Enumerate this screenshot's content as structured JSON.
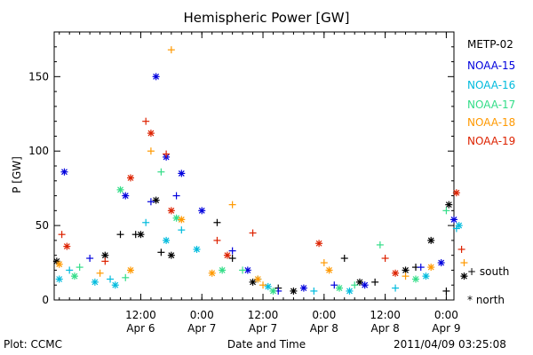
{
  "chart_data": {
    "type": "scatter",
    "title": "Hemispheric Power [GW]",
    "ylabel": "P [GW]",
    "xlabel": "Date and Time",
    "ylim": [
      0,
      180
    ],
    "xlim": [
      "2011-04-05T19:00",
      "2011-04-09T01:30"
    ],
    "yticks": [
      0,
      50,
      100,
      150
    ],
    "xticks": [
      {
        "top": "12:00",
        "bottom": "Apr 6"
      },
      {
        "top": "0:00",
        "bottom": "Apr 7"
      },
      {
        "top": "12:00",
        "bottom": "Apr 7"
      },
      {
        "top": "0:00",
        "bottom": "Apr 8"
      },
      {
        "top": "12:00",
        "bottom": "Apr 8"
      },
      {
        "top": "0:00",
        "bottom": "Apr 9"
      }
    ],
    "markers": [
      {
        "symbol": "+",
        "label": "south"
      },
      {
        "symbol": "*",
        "label": "north"
      }
    ],
    "series": [
      {
        "name": "METP-02",
        "color": "#000000",
        "south": [
          [
            "2011-04-06T08:00",
            44
          ],
          [
            "2011-04-06T11:00",
            44
          ],
          [
            "2011-04-06T16:00",
            32
          ],
          [
            "2011-04-07T03:00",
            52
          ],
          [
            "2011-04-07T06:00",
            28
          ],
          [
            "2011-04-07T15:00",
            8
          ],
          [
            "2011-04-08T04:00",
            28
          ],
          [
            "2011-04-08T10:00",
            12
          ],
          [
            "2011-04-08T18:00",
            22
          ],
          [
            "2011-04-09T00:00",
            6
          ]
        ],
        "north": [
          [
            "2011-04-05T19:30",
            26
          ],
          [
            "2011-04-06T05:00",
            30
          ],
          [
            "2011-04-06T12:00",
            44
          ],
          [
            "2011-04-06T15:00",
            67
          ],
          [
            "2011-04-06T18:00",
            30
          ],
          [
            "2011-04-07T10:00",
            12
          ],
          [
            "2011-04-07T18:00",
            6
          ],
          [
            "2011-04-08T07:00",
            12
          ],
          [
            "2011-04-08T16:00",
            20
          ],
          [
            "2011-04-08T21:00",
            40
          ],
          [
            "2011-04-09T00:30",
            64
          ],
          [
            "2011-04-09T03:30",
            16
          ]
        ]
      },
      {
        "name": "NOAA-15",
        "color": "#0000dd",
        "south": [
          [
            "2011-04-06T02:00",
            28
          ],
          [
            "2011-04-06T14:00",
            66
          ],
          [
            "2011-04-06T19:00",
            70
          ],
          [
            "2011-04-07T06:00",
            33
          ],
          [
            "2011-04-07T15:00",
            6
          ],
          [
            "2011-04-08T02:00",
            10
          ],
          [
            "2011-04-08T19:00",
            22
          ]
        ],
        "north": [
          [
            "2011-04-05T21:00",
            86
          ],
          [
            "2011-04-06T09:00",
            70
          ],
          [
            "2011-04-06T15:00",
            150
          ],
          [
            "2011-04-06T17:00",
            96
          ],
          [
            "2011-04-06T20:00",
            85
          ],
          [
            "2011-04-07T00:00",
            60
          ],
          [
            "2011-04-07T09:00",
            20
          ],
          [
            "2011-04-07T20:00",
            8
          ],
          [
            "2011-04-08T08:00",
            10
          ],
          [
            "2011-04-08T23:00",
            25
          ],
          [
            "2011-04-09T01:30",
            54
          ]
        ]
      },
      {
        "name": "NOAA-16",
        "color": "#00bbdd",
        "south": [
          [
            "2011-04-05T22:00",
            20
          ],
          [
            "2011-04-06T06:00",
            14
          ],
          [
            "2011-04-06T13:00",
            52
          ],
          [
            "2011-04-06T20:00",
            47
          ],
          [
            "2011-04-07T11:00",
            14
          ],
          [
            "2011-04-07T22:00",
            6
          ],
          [
            "2011-04-08T14:00",
            8
          ],
          [
            "2011-04-09T02:00",
            48
          ]
        ],
        "north": [
          [
            "2011-04-05T20:00",
            14
          ],
          [
            "2011-04-06T03:00",
            12
          ],
          [
            "2011-04-06T07:00",
            10
          ],
          [
            "2011-04-06T17:00",
            40
          ],
          [
            "2011-04-06T23:00",
            34
          ],
          [
            "2011-04-07T13:00",
            9
          ],
          [
            "2011-04-08T05:00",
            6
          ],
          [
            "2011-04-08T20:00",
            16
          ],
          [
            "2011-04-09T02:30",
            50
          ]
        ]
      },
      {
        "name": "NOAA-17",
        "color": "#33dd88",
        "south": [
          [
            "2011-04-06T00:00",
            22
          ],
          [
            "2011-04-06T09:00",
            15
          ],
          [
            "2011-04-06T16:00",
            86
          ],
          [
            "2011-04-07T08:00",
            20
          ],
          [
            "2011-04-08T06:00",
            10
          ],
          [
            "2011-04-08T11:00",
            37
          ],
          [
            "2011-04-09T00:00",
            60
          ]
        ],
        "north": [
          [
            "2011-04-05T23:00",
            16
          ],
          [
            "2011-04-06T08:00",
            74
          ],
          [
            "2011-04-06T19:00",
            55
          ],
          [
            "2011-04-07T04:00",
            20
          ],
          [
            "2011-04-07T14:00",
            6
          ],
          [
            "2011-04-08T03:00",
            8
          ],
          [
            "2011-04-08T18:00",
            14
          ]
        ]
      },
      {
        "name": "NOAA-18",
        "color": "#ff9900",
        "south": [
          [
            "2011-04-06T04:00",
            18
          ],
          [
            "2011-04-06T14:00",
            100
          ],
          [
            "2011-04-06T18:00",
            168
          ],
          [
            "2011-04-07T06:00",
            64
          ],
          [
            "2011-04-07T12:00",
            10
          ],
          [
            "2011-04-08T00:00",
            25
          ],
          [
            "2011-04-08T16:00",
            16
          ],
          [
            "2011-04-09T03:30",
            25
          ]
        ],
        "north": [
          [
            "2011-04-05T20:00",
            24
          ],
          [
            "2011-04-06T10:00",
            20
          ],
          [
            "2011-04-06T20:00",
            54
          ],
          [
            "2011-04-07T02:00",
            18
          ],
          [
            "2011-04-07T11:00",
            14
          ],
          [
            "2011-04-08T01:00",
            20
          ],
          [
            "2011-04-08T21:00",
            22
          ]
        ]
      },
      {
        "name": "NOAA-19",
        "color": "#dd2200",
        "south": [
          [
            "2011-04-05T20:30",
            44
          ],
          [
            "2011-04-06T05:00",
            26
          ],
          [
            "2011-04-06T13:00",
            120
          ],
          [
            "2011-04-06T17:00",
            98
          ],
          [
            "2011-04-07T03:00",
            40
          ],
          [
            "2011-04-07T10:00",
            45
          ],
          [
            "2011-04-08T12:00",
            28
          ],
          [
            "2011-04-09T03:00",
            34
          ]
        ],
        "north": [
          [
            "2011-04-05T21:30",
            36
          ],
          [
            "2011-04-06T10:00",
            82
          ],
          [
            "2011-04-06T14:00",
            112
          ],
          [
            "2011-04-06T18:00",
            60
          ],
          [
            "2011-04-07T05:00",
            30
          ],
          [
            "2011-04-07T23:00",
            38
          ],
          [
            "2011-04-08T14:00",
            18
          ],
          [
            "2011-04-09T02:00",
            72
          ]
        ]
      }
    ]
  },
  "footer": {
    "credit": "Plot: CCMC",
    "timestamp": "2011/04/09 03:25:08"
  }
}
